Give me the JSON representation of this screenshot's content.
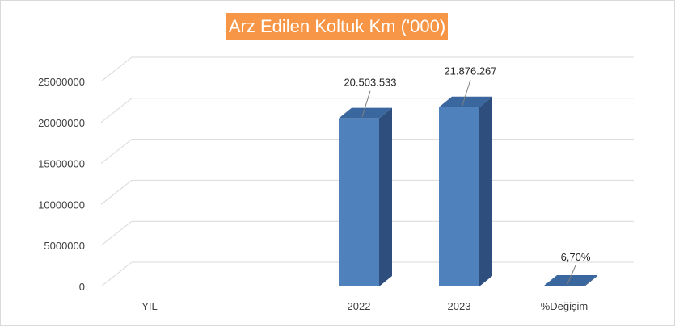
{
  "chart_data": {
    "type": "bar",
    "title": "Arz Edilen Koltuk Km ('000)",
    "categories": [
      "YIL",
      "2022",
      "2023",
      "%Değişim"
    ],
    "values": [
      0,
      20503533,
      21876267,
      6.7
    ],
    "data_labels": [
      "",
      "20.503.533",
      "21.876.267",
      "6,70%"
    ],
    "y_ticks": [
      "0",
      "5000000",
      "10000000",
      "15000000",
      "20000000",
      "25000000"
    ],
    "ylim": [
      0,
      25000000
    ],
    "grid": true,
    "style": "3d-column",
    "colors": {
      "bar_front": "#4f81bd",
      "bar_side": "#2e4f7e",
      "bar_top": "#3b679f",
      "title_bg": "#f79646",
      "title_text": "#ffffff",
      "grid": "#d9d9d9"
    }
  }
}
